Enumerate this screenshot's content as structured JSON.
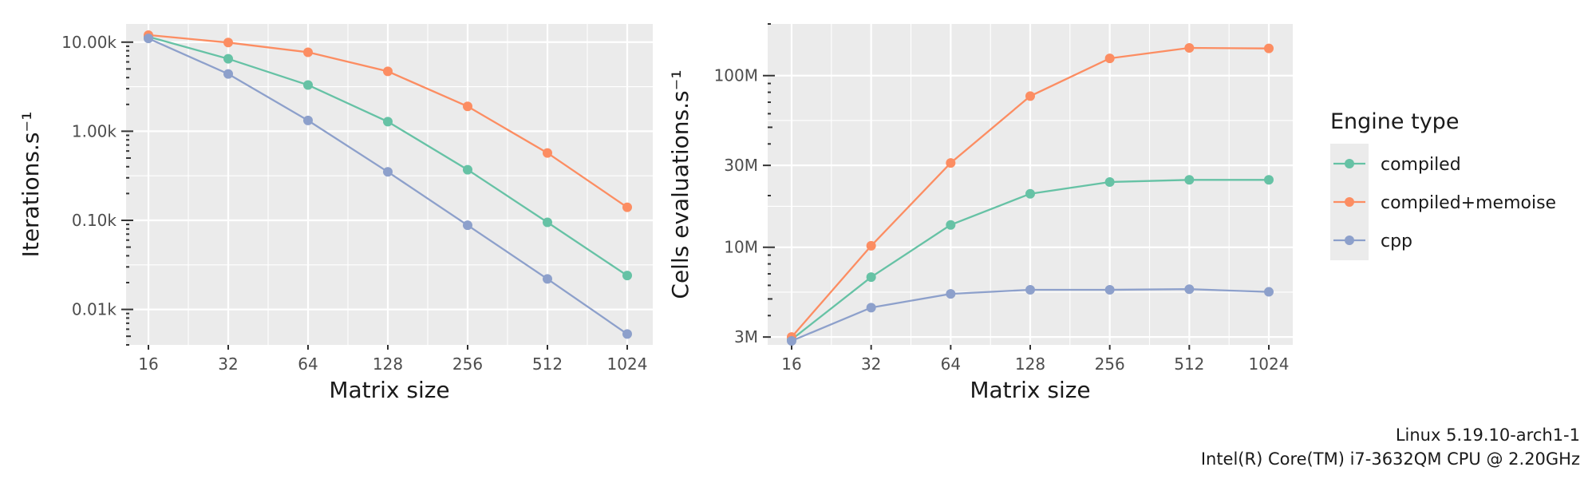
{
  "colors": {
    "panel_bg": "#EBEBEB",
    "grid": "#FFFFFF",
    "compiled": "#66C2A5",
    "compiled+memoise": "#FC8D62",
    "cpp": "#8DA0CB"
  },
  "legend": {
    "title": "Engine type",
    "position": "right",
    "entries": [
      "compiled",
      "compiled+memoise",
      "cpp"
    ]
  },
  "caption": {
    "line1": "Linux 5.19.10-arch1-1",
    "line2": "Intel(R) Core(TM) i7-3632QM CPU @ 2.20GHz"
  },
  "chart_data": [
    {
      "type": "line",
      "xlabel": "Matrix size",
      "ylabel": "Iterations.s⁻¹",
      "x_scale": "log2",
      "y_scale": "log10",
      "x": [
        16,
        32,
        64,
        128,
        256,
        512,
        1024
      ],
      "x_tick_labels": [
        "16",
        "32",
        "64",
        "128",
        "256",
        "512",
        "1024"
      ],
      "y_ticks": [
        10,
        100,
        1000,
        10000
      ],
      "y_tick_labels": [
        "0.01k",
        "0.10k",
        "1.00k",
        "10.00k"
      ],
      "ylim": [
        4,
        16000
      ],
      "grid": true,
      "series": [
        {
          "name": "compiled",
          "values": [
            11500,
            6500,
            3300,
            1280,
            370,
            95,
            24
          ]
        },
        {
          "name": "compiled+memoise",
          "values": [
            12000,
            9900,
            7700,
            4700,
            1900,
            570,
            140
          ]
        },
        {
          "name": "cpp",
          "values": [
            11000,
            4400,
            1320,
            350,
            88,
            22,
            5.3
          ]
        }
      ]
    },
    {
      "type": "line",
      "xlabel": "Matrix size",
      "ylabel": "Cells evaluations.s⁻¹",
      "x_scale": "log2",
      "y_scale": "log10",
      "x": [
        16,
        32,
        64,
        128,
        256,
        512,
        1024
      ],
      "x_tick_labels": [
        "16",
        "32",
        "64",
        "128",
        "256",
        "512",
        "1024"
      ],
      "y_ticks": [
        3000000,
        10000000,
        30000000,
        100000000
      ],
      "y_tick_labels": [
        "3M",
        "10M",
        "30M",
        "100M"
      ],
      "ylim": [
        2700000,
        200000000
      ],
      "grid": true,
      "series": [
        {
          "name": "compiled",
          "values": [
            2900000,
            6700000,
            13500000,
            20500000,
            24000000,
            24700000,
            24700000
          ]
        },
        {
          "name": "compiled+memoise",
          "values": [
            3000000,
            10200000,
            31000000,
            76000000,
            126000000,
            145000000,
            144000000
          ]
        },
        {
          "name": "cpp",
          "values": [
            2850000,
            4450000,
            5350000,
            5650000,
            5650000,
            5700000,
            5500000
          ]
        }
      ]
    }
  ]
}
